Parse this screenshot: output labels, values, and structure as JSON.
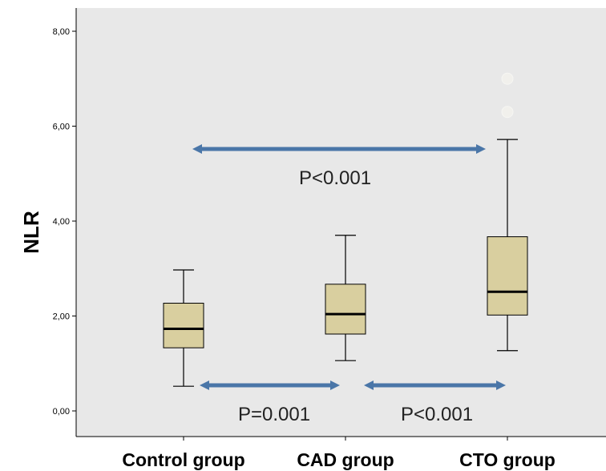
{
  "chart_data": {
    "type": "boxplot",
    "ylabel": "NLR",
    "ylim": [
      0,
      8.5
    ],
    "y_ticks": [
      "0,00",
      "2,00",
      "4,00",
      "6,00",
      "8,00"
    ],
    "y_tick_values": [
      0,
      2,
      4,
      6,
      8
    ],
    "grid": false,
    "box_color": "#d9cf9f",
    "arrow_color": "#4a76a8",
    "background_color": "#e8e8e8",
    "categories": [
      "Control group",
      "CAD group",
      "CTO group"
    ],
    "boxes": [
      {
        "category": "Control group",
        "whisker_low": 0.52,
        "q1": 1.33,
        "median": 1.73,
        "q3": 2.27,
        "whisker_high": 2.97
      },
      {
        "category": "CAD group",
        "whisker_low": 1.06,
        "q1": 1.62,
        "median": 2.04,
        "q3": 2.67,
        "whisker_high": 3.7
      },
      {
        "category": "CTO group",
        "whisker_low": 1.27,
        "q1": 2.02,
        "median": 2.51,
        "q3": 3.67,
        "whisker_high": 5.72,
        "outliers": [
          6.3,
          7.0
        ]
      }
    ],
    "comparisons": [
      {
        "from": "Control group",
        "to": "CTO group",
        "label": "P<0.001"
      },
      {
        "from": "Control group",
        "to": "CAD group",
        "label": "P=0.001"
      },
      {
        "from": "CAD group",
        "to": "CTO group",
        "label": "P<0.001"
      }
    ]
  }
}
